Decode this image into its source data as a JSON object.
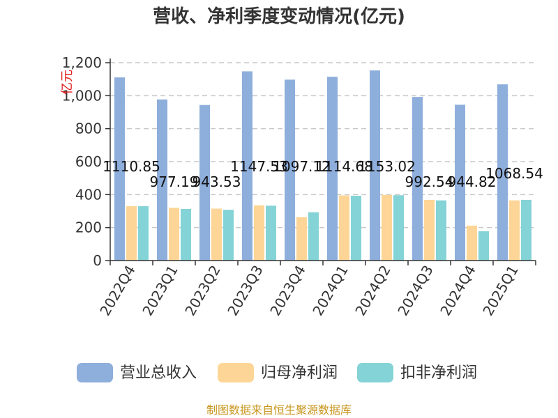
{
  "title": "营收、净利季度变动情况(亿元)",
  "source": "制图数据来自恒生聚源数据库",
  "colors": {
    "revenue": "#8eaedc",
    "net_profit": "#fdd697",
    "deducted_profit": "#84d3d6",
    "grid": "#c8c8c8",
    "axis": "#333333"
  },
  "chart_data": {
    "type": "bar",
    "title": "营收、净利季度变动情况(亿元)",
    "ylabel": "亿元",
    "ylim": [
      0,
      1200
    ],
    "yticks": [
      0,
      200,
      400,
      600,
      800,
      1000,
      1200
    ],
    "ytick_labels": [
      "0",
      "200",
      "400",
      "600",
      "800",
      "1,000",
      "1,200"
    ],
    "grid": true,
    "legend_position": "bottom",
    "categories": [
      "2022Q4",
      "2023Q1",
      "2023Q2",
      "2023Q3",
      "2023Q4",
      "2024Q1",
      "2024Q2",
      "2024Q3",
      "2024Q4",
      "2025Q1"
    ],
    "series": [
      {
        "name": "营业总收入",
        "color_key": "revenue",
        "values": [
          1110.85,
          977.19,
          943.53,
          1147.53,
          1097.12,
          1114.68,
          1153.02,
          992.54,
          944.82,
          1068.54
        ],
        "labels": [
          "1110.85",
          "977.19",
          "943.53",
          "1147.53",
          "1097.12",
          "1114.68",
          "1153.02",
          "992.54",
          "944.82",
          "1068.54"
        ]
      },
      {
        "name": "归母净利润",
        "color_key": "net_profit",
        "values": [
          330,
          320,
          315,
          335,
          263,
          395,
          398,
          368,
          212,
          365
        ]
      },
      {
        "name": "扣非净利润",
        "color_key": "deducted_profit",
        "values": [
          330,
          313,
          308,
          333,
          293,
          393,
          396,
          365,
          178,
          368
        ]
      }
    ]
  }
}
